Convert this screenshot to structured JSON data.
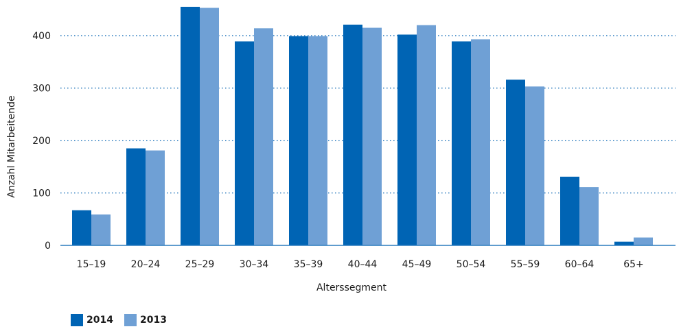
{
  "chart_data": {
    "type": "bar",
    "categories": [
      "15–19",
      "20–24",
      "25–29",
      "30–34",
      "35–39",
      "40–44",
      "45–49",
      "50–54",
      "55–59",
      "60–64",
      "65+"
    ],
    "series": [
      {
        "name": "2014",
        "color": "#0064b4",
        "values": [
          67,
          185,
          455,
          389,
          399,
          421,
          402,
          389,
          316,
          131,
          7
        ]
      },
      {
        "name": "2013",
        "color": "#6fa0d5",
        "values": [
          59,
          181,
          453,
          414,
          399,
          415,
          420,
          393,
          303,
          111,
          15
        ]
      }
    ],
    "title": "",
    "xlabel": "Alterssegment",
    "ylabel": "Anzahl Mitarbeitende",
    "ylim": [
      0,
      460
    ],
    "yticks": [
      0,
      100,
      200,
      300,
      400
    ],
    "grid": "horizontal-dotted",
    "legend_position": "bottom-left",
    "gridline_color": "#2a7bbd",
    "axis_color": "#2a7bbd"
  }
}
